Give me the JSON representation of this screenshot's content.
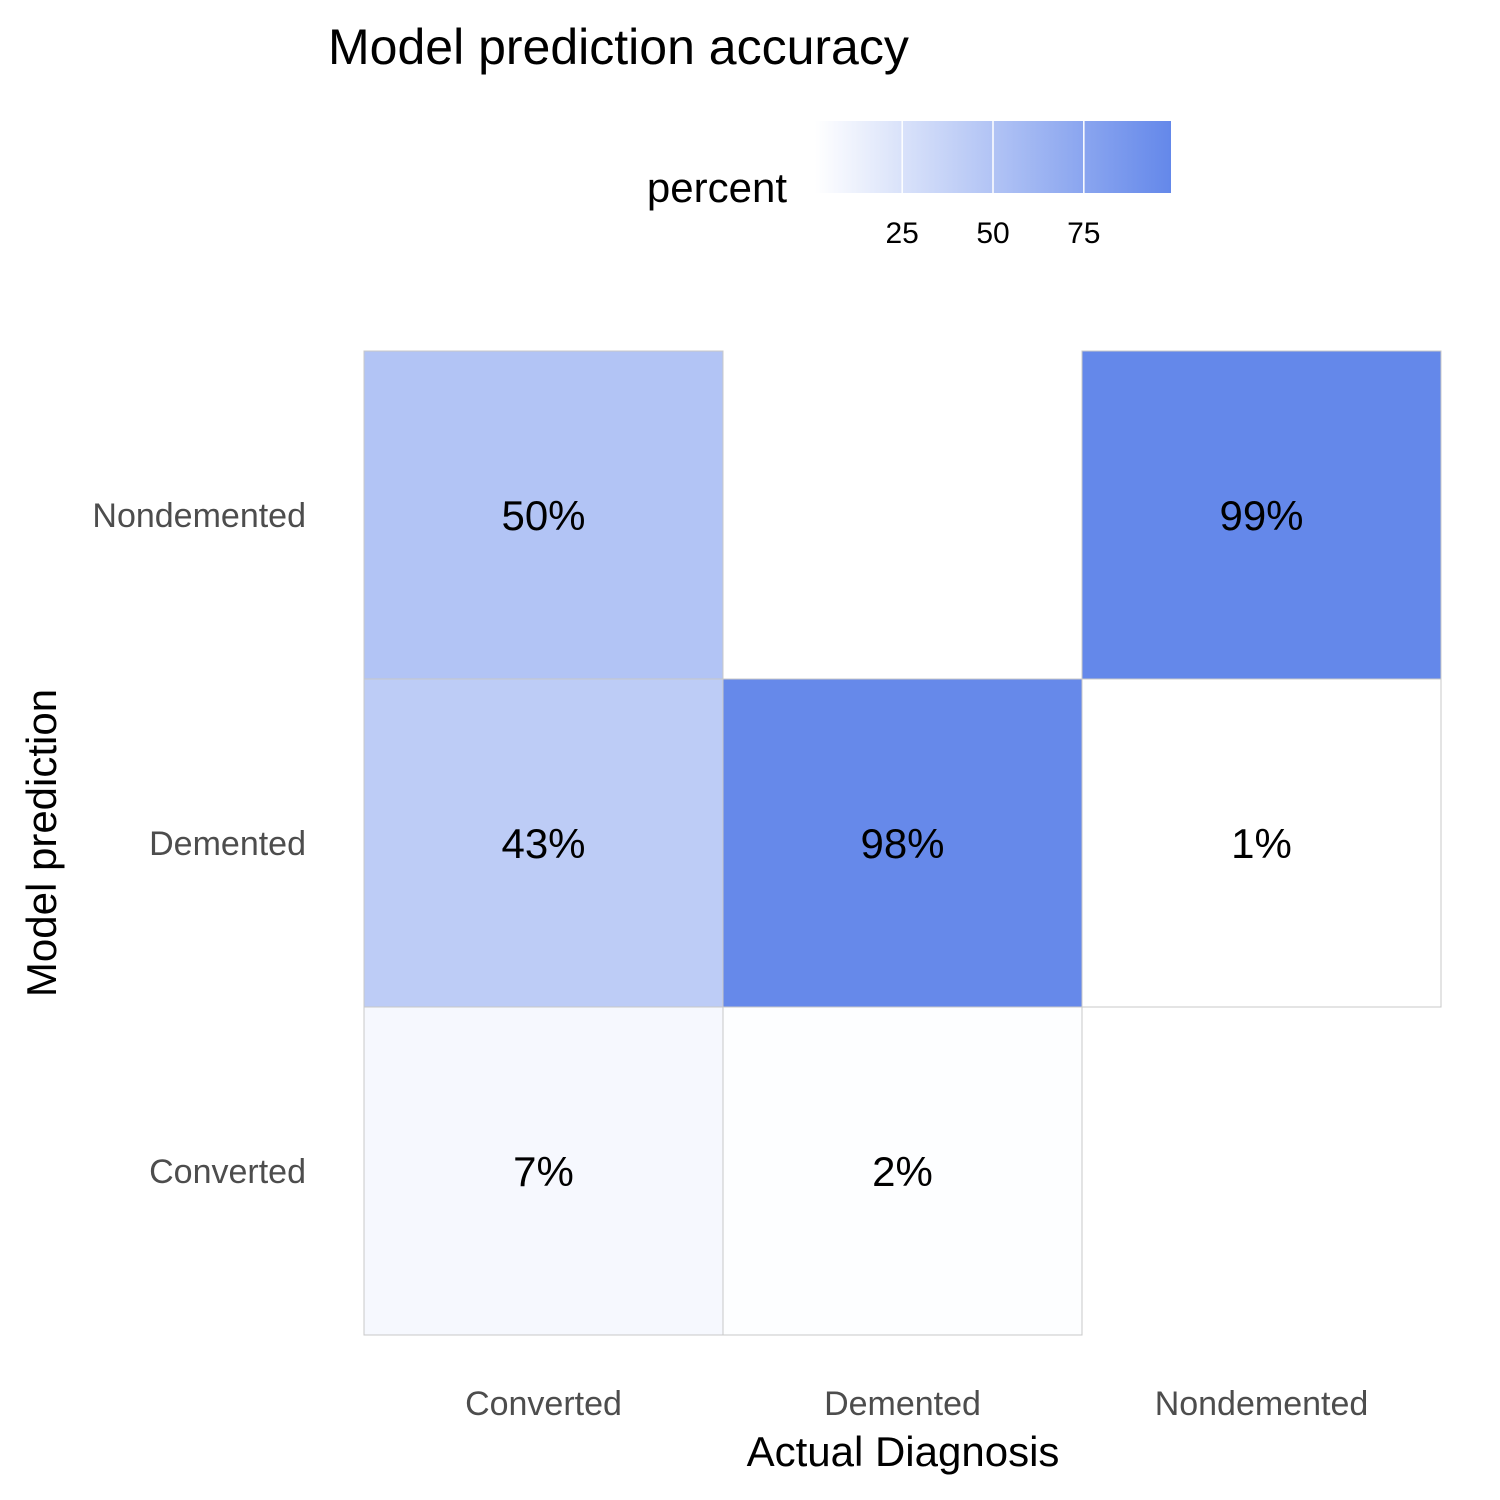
{
  "chart_data": {
    "type": "heatmap",
    "title": "Model prediction accuracy",
    "xlabel": "Actual Diagnosis",
    "ylabel": "Model prediction",
    "x_categories": [
      "Converted",
      "Demented",
      "Nondemented"
    ],
    "y_categories": [
      "Nondemented",
      "Demented",
      "Converted"
    ],
    "cells": [
      {
        "x": "Converted",
        "y": "Nondemented",
        "value": 50,
        "label": "50%"
      },
      {
        "x": "Converted",
        "y": "Demented",
        "value": 43,
        "label": "43%"
      },
      {
        "x": "Converted",
        "y": "Converted",
        "value": 7,
        "label": "7%"
      },
      {
        "x": "Demented",
        "y": "Demented",
        "value": 98,
        "label": "98%"
      },
      {
        "x": "Demented",
        "y": "Converted",
        "value": 2,
        "label": "2%"
      },
      {
        "x": "Nondemented",
        "y": "Nondemented",
        "value": 99,
        "label": "99%"
      },
      {
        "x": "Nondemented",
        "y": "Demented",
        "value": 1,
        "label": "1%"
      }
    ],
    "legend": {
      "title": "percent",
      "placement": "top",
      "ticks": [
        "25",
        "50",
        "75"
      ],
      "tick_values": [
        25,
        50,
        75
      ],
      "range": [
        1,
        99
      ],
      "low_color": "#ffffff",
      "high_color": "#6488ea"
    },
    "grid": false
  }
}
